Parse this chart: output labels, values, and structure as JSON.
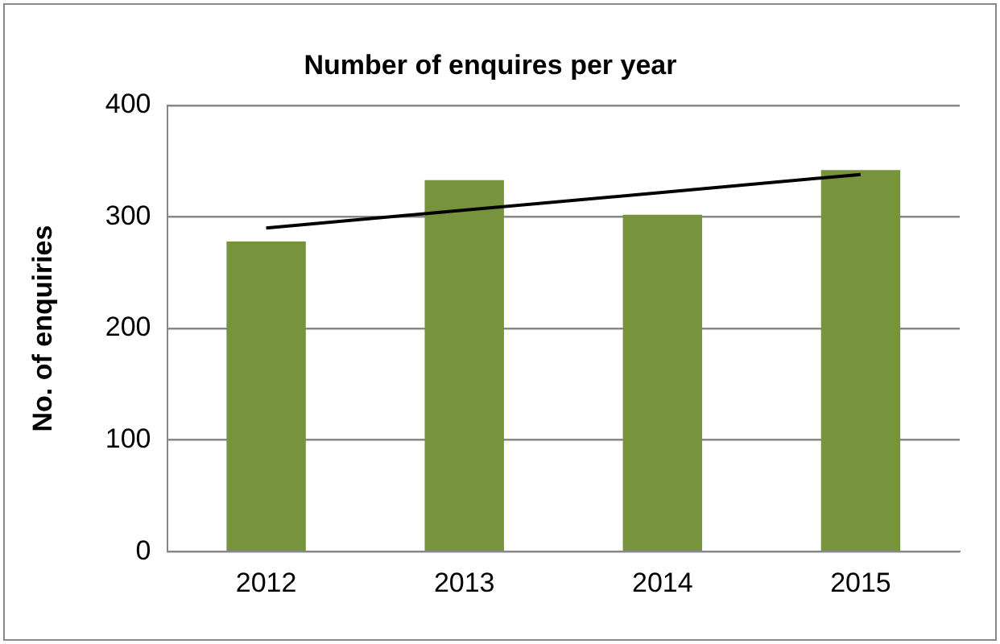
{
  "chart_data": {
    "type": "bar",
    "title": "Number of enquires per year",
    "ylabel": "No. of enquiries",
    "categories": [
      "2012",
      "2013",
      "2014",
      "2015"
    ],
    "series": [
      {
        "color": "#77933c",
        "values": [
          278,
          333,
          302,
          342
        ]
      },
      {
        "type": "line",
        "color": "#000000",
        "values": [
          290,
          306,
          322,
          338
        ],
        "marker": "none"
      }
    ],
    "ylim": [
      0,
      400
    ],
    "yticks": [
      0,
      100,
      200,
      300,
      400
    ],
    "grid": "y",
    "legend": false
  }
}
